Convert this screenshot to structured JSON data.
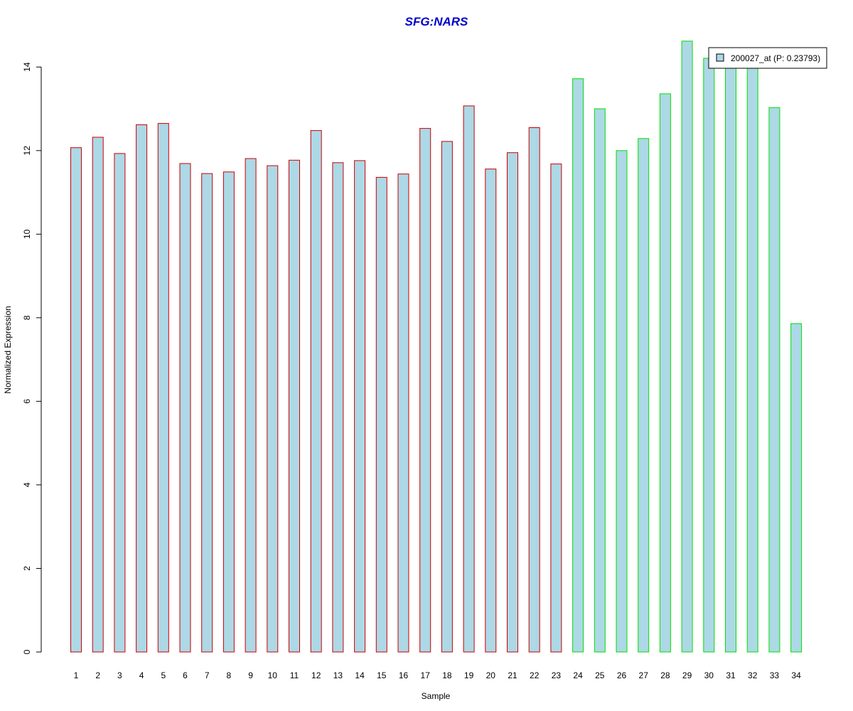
{
  "chart_data": {
    "type": "bar",
    "title": "SFG:NARS",
    "xlabel": "Sample",
    "ylabel": "Normalized Expression",
    "ylim": [
      0,
      14.6
    ],
    "yticks": [
      0,
      2,
      4,
      6,
      8,
      10,
      12,
      14
    ],
    "categories": [
      "1",
      "2",
      "3",
      "4",
      "5",
      "6",
      "7",
      "8",
      "9",
      "10",
      "11",
      "12",
      "13",
      "14",
      "15",
      "16",
      "17",
      "18",
      "19",
      "20",
      "21",
      "22",
      "23",
      "24",
      "25",
      "26",
      "27",
      "28",
      "29",
      "30",
      "31",
      "32",
      "33",
      "34"
    ],
    "series": [
      {
        "name": "200027_at (P: 0.23793)",
        "values": [
          12.07,
          12.32,
          11.93,
          12.62,
          12.65,
          11.69,
          11.45,
          11.49,
          11.81,
          11.64,
          11.77,
          12.48,
          11.71,
          11.76,
          11.36,
          11.44,
          12.53,
          12.22,
          13.07,
          11.56,
          11.95,
          12.55,
          11.68,
          13.72,
          13.0,
          12.0,
          12.29,
          13.36,
          14.62,
          14.21,
          14.1,
          14.05,
          13.03,
          7.86
        ],
        "fill_color": "#add8e6",
        "group_colors": [
          "#cc0000",
          "#cc0000",
          "#cc0000",
          "#cc0000",
          "#cc0000",
          "#cc0000",
          "#cc0000",
          "#cc0000",
          "#cc0000",
          "#cc0000",
          "#cc0000",
          "#cc0000",
          "#cc0000",
          "#cc0000",
          "#cc0000",
          "#cc0000",
          "#cc0000",
          "#cc0000",
          "#cc0000",
          "#cc0000",
          "#cc0000",
          "#cc0000",
          "#cc0000",
          "#00e000",
          "#00e000",
          "#00e000",
          "#00e000",
          "#00e000",
          "#00e000",
          "#00e000",
          "#00e000",
          "#00e000",
          "#00e000",
          "#00e000"
        ]
      }
    ],
    "title_color": "#0000cc",
    "grid": false,
    "legend_position": "top-right"
  }
}
